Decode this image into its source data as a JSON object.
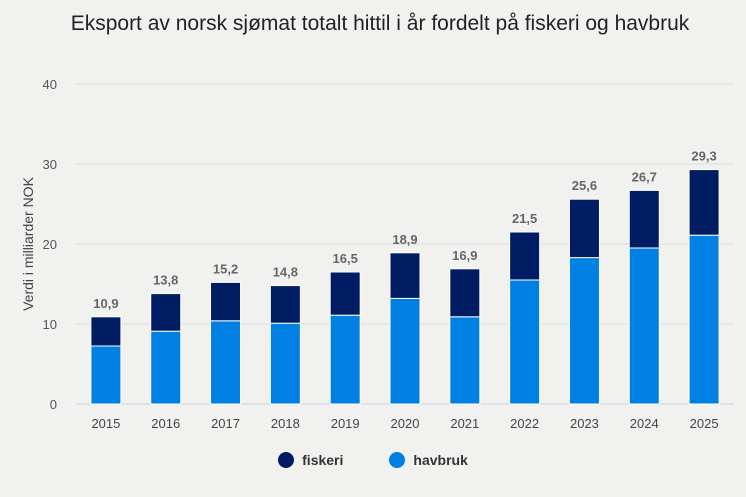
{
  "chart_data": {
    "type": "bar",
    "stacked": true,
    "title": "Eksport av norsk sjømat totalt hittil i år fordelt på fiskeri og havbruk",
    "xlabel": "",
    "ylabel": "Verdi i milliarder NOK",
    "ylim": [
      0,
      40
    ],
    "yticks": [
      0,
      10,
      20,
      30,
      40
    ],
    "grid": true,
    "legend_position": "bottom",
    "categories": [
      "2015",
      "2016",
      "2017",
      "2018",
      "2019",
      "2020",
      "2021",
      "2022",
      "2023",
      "2024",
      "2025"
    ],
    "totals": [
      10.9,
      13.8,
      15.2,
      14.8,
      16.5,
      18.9,
      16.9,
      21.5,
      25.6,
      26.7,
      29.3
    ],
    "total_labels": [
      "10,9",
      "13,8",
      "15,2",
      "14,8",
      "16,5",
      "18,9",
      "16,9",
      "21,5",
      "25,6",
      "26,7",
      "29,3"
    ],
    "series": [
      {
        "name": "havbruk",
        "color": "#0080e3",
        "values": [
          7.25,
          9.1,
          10.4,
          10.1,
          11.1,
          13.2,
          10.9,
          15.5,
          18.3,
          19.5,
          21.1
        ]
      },
      {
        "name": "fiskeri",
        "color": "#001c63",
        "values": [
          3.65,
          4.7,
          4.8,
          4.7,
          5.4,
          5.7,
          6.0,
          6.0,
          7.3,
          7.2,
          8.2
        ]
      }
    ]
  },
  "legend": [
    {
      "name": "fiskeri",
      "color": "#001c63"
    },
    {
      "name": "havbruk",
      "color": "#0080e3"
    }
  ]
}
